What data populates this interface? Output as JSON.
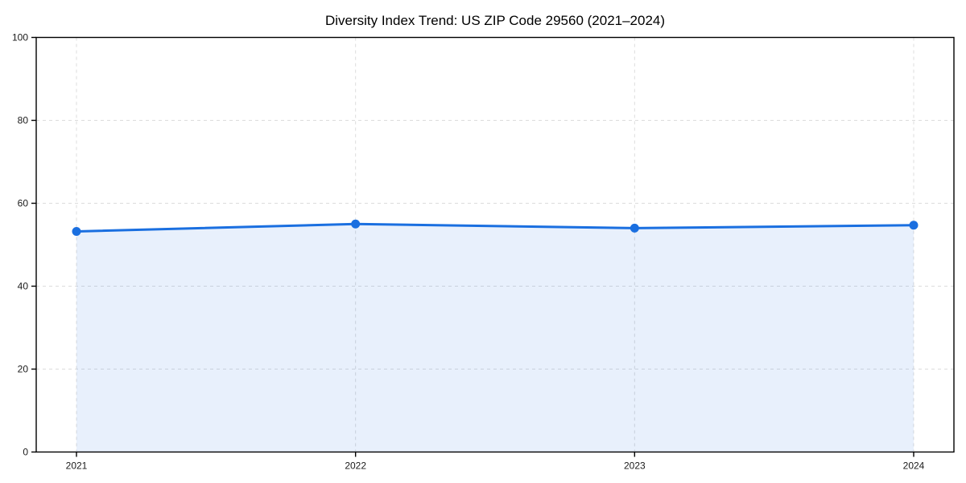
{
  "page": {
    "background": "#ffffff"
  },
  "chart_data": {
    "type": "area",
    "title": "Diversity Index Trend: US ZIP Code 29560 (2021–2024)",
    "x": [
      2021,
      2022,
      2023,
      2024
    ],
    "xticks": [
      "2021",
      "2022",
      "2023",
      "2024"
    ],
    "series": [
      {
        "name": "Diversity Index",
        "values": [
          53.2,
          55.0,
          54.0,
          54.7
        ]
      }
    ],
    "xlabel": "",
    "ylabel": "",
    "ylim": [
      0,
      100
    ],
    "yticks": [
      0,
      20,
      40,
      60,
      80,
      100
    ],
    "grid": "dashed",
    "legend": "none",
    "colors": {
      "line": "#1a6fe0",
      "marker": "#1a6fe0",
      "fill": "rgba(26, 111, 224, 0.10)",
      "grid": "#dcdcdc",
      "spine": "#000000",
      "tick_label": "#1a1a1a",
      "title": "#000000"
    }
  }
}
